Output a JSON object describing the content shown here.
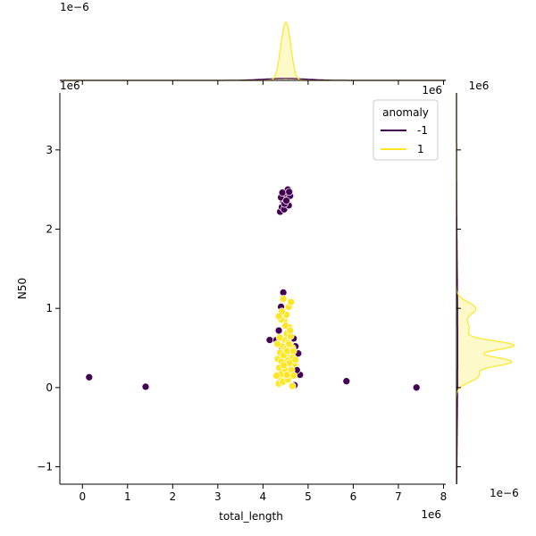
{
  "chart_data": {
    "type": "scatter",
    "subtype": "jointplot",
    "xlabel": "total_length",
    "ylabel": "N50",
    "x_offset_label": "1e6",
    "y_offset_label": "1e6",
    "top_marginal_offset_label": "1e−6",
    "right_marginal_offset_label": "1e−6",
    "xlim": [
      -0.5,
      8.05
    ],
    "ylim": [
      -1.22,
      3.72
    ],
    "x_ticks": [
      0,
      1,
      2,
      3,
      4,
      5,
      6,
      7,
      8
    ],
    "y_ticks": [
      -1,
      0,
      1,
      2,
      3
    ],
    "x_tick_labels": [
      "0",
      "1",
      "2",
      "3",
      "4",
      "5",
      "6",
      "7",
      "8"
    ],
    "y_tick_labels": [
      "−1",
      "0",
      "1",
      "2",
      "3"
    ],
    "grid": false,
    "legend": {
      "title": "anomaly",
      "placement": "top-right",
      "entries": [
        {
          "label": "-1",
          "color": "#440154"
        },
        {
          "label": "1",
          "color": "#fde725"
        }
      ]
    },
    "series": [
      {
        "name": "-1",
        "color": "#440154",
        "points": [
          [
            0.15,
            0.13
          ],
          [
            1.4,
            0.01
          ],
          [
            5.85,
            0.08
          ],
          [
            7.4,
            0.0
          ],
          [
            4.15,
            0.6
          ],
          [
            4.82,
            0.16
          ],
          [
            4.7,
            0.03
          ],
          [
            4.75,
            0.22
          ],
          [
            4.78,
            0.43
          ],
          [
            4.3,
            0.6
          ],
          [
            4.35,
            0.72
          ],
          [
            4.4,
            1.02
          ],
          [
            4.45,
            1.2
          ],
          [
            4.6,
            0.45
          ],
          [
            4.72,
            0.52
          ],
          [
            4.62,
            0.26
          ],
          [
            4.38,
            0.08
          ],
          [
            4.5,
            0.1
          ],
          [
            4.42,
            0.5
          ],
          [
            4.68,
            0.62
          ],
          [
            4.55,
            0.2
          ],
          [
            4.48,
            0.38
          ],
          [
            4.38,
            2.22
          ],
          [
            4.42,
            2.28
          ],
          [
            4.47,
            2.25
          ],
          [
            4.52,
            2.4
          ],
          [
            4.57,
            2.3
          ],
          [
            4.45,
            2.35
          ],
          [
            4.4,
            2.4
          ],
          [
            4.5,
            2.45
          ],
          [
            4.55,
            2.5
          ],
          [
            4.6,
            2.42
          ],
          [
            4.48,
            2.32
          ],
          [
            4.43,
            2.46
          ],
          [
            4.52,
            2.36
          ],
          [
            4.58,
            2.47
          ]
        ]
      },
      {
        "name": "1",
        "color": "#fde725",
        "points": [
          [
            4.35,
            0.05
          ],
          [
            4.4,
            0.12
          ],
          [
            4.45,
            0.2
          ],
          [
            4.5,
            0.28
          ],
          [
            4.55,
            0.35
          ],
          [
            4.6,
            0.42
          ],
          [
            4.65,
            0.5
          ],
          [
            4.7,
            0.3
          ],
          [
            4.33,
            0.36
          ],
          [
            4.38,
            0.44
          ],
          [
            4.43,
            0.52
          ],
          [
            4.48,
            0.6
          ],
          [
            4.53,
            0.68
          ],
          [
            4.58,
            0.76
          ],
          [
            4.63,
            0.22
          ],
          [
            4.68,
            0.15
          ],
          [
            4.36,
            0.25
          ],
          [
            4.41,
            0.33
          ],
          [
            4.46,
            0.41
          ],
          [
            4.51,
            0.49
          ],
          [
            4.56,
            0.57
          ],
          [
            4.61,
            0.65
          ],
          [
            4.66,
            0.38
          ],
          [
            4.44,
            0.07
          ],
          [
            4.39,
            0.17
          ],
          [
            4.49,
            0.23
          ],
          [
            4.59,
            0.31
          ],
          [
            4.54,
            0.46
          ],
          [
            4.47,
            0.84
          ],
          [
            4.52,
            0.92
          ],
          [
            4.42,
            0.96
          ],
          [
            4.57,
            1.02
          ],
          [
            4.62,
            1.08
          ],
          [
            4.45,
            1.12
          ],
          [
            4.5,
            0.78
          ],
          [
            4.4,
            0.86
          ],
          [
            4.6,
            0.72
          ],
          [
            4.35,
            0.9
          ],
          [
            4.55,
            0.1
          ],
          [
            4.65,
            0.02
          ],
          [
            4.32,
            0.55
          ],
          [
            4.37,
            0.63
          ],
          [
            4.67,
            0.46
          ],
          [
            4.72,
            0.35
          ],
          [
            4.3,
            0.15
          ],
          [
            4.58,
            0.55
          ],
          [
            4.46,
            0.28
          ],
          [
            4.53,
            0.16
          ]
        ]
      }
    ],
    "marginals": {
      "top": {
        "orientation": "x-density",
        "ylim": [
          0,
          1
        ],
        "series": [
          {
            "name": "-1",
            "color": "#440154",
            "shape": "low-hump",
            "center": 4.5,
            "spread": 0.5,
            "height": 0.03
          },
          {
            "name": "1",
            "color": "#fde725",
            "shape": "sharp-peak",
            "center": 4.52,
            "spread": 0.1,
            "height": 1.0
          }
        ]
      },
      "right": {
        "orientation": "y-density",
        "series": [
          {
            "name": "-1",
            "color": "#440154",
            "shape": "thin-line",
            "center": 0.5,
            "spread": 1.0,
            "height": 0.02
          },
          {
            "name": "1",
            "color": "#fde725",
            "shape": "multi-peak",
            "center": 0.45,
            "spread": 0.25,
            "height": 1.0
          }
        ]
      }
    }
  }
}
